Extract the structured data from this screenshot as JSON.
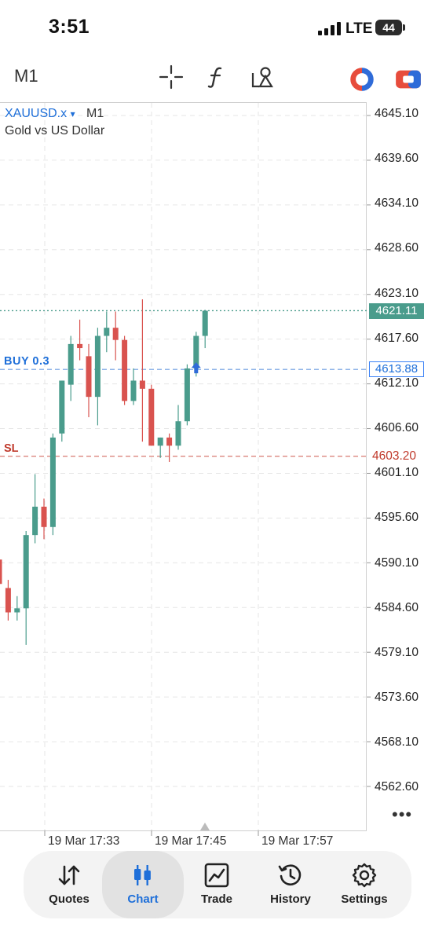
{
  "status": {
    "time": "3:51",
    "network": "LTE",
    "battery": "44"
  },
  "toolbar": {
    "timeframe": "M1",
    "icons": [
      "crosshair-icon",
      "indicator-f-icon",
      "objects-icon",
      "one-click-trading-icon",
      "chart-mode-icon"
    ]
  },
  "chart": {
    "symbol": "XAUUSD.x",
    "symbol_arrow": "▾",
    "timeframe": "M1",
    "description": "Gold vs US Dollar",
    "buy_label": "BUY 0.3",
    "sl_label": "SL",
    "current_price": "4621.11",
    "buy_price": "4613.88",
    "sl_price": "4603.20",
    "more": "•••",
    "price_labels": [
      "4645.10",
      "4639.60",
      "4634.10",
      "4628.60",
      "4623.10",
      "4617.60",
      "4612.10",
      "4606.60",
      "4601.10",
      "4595.60",
      "4590.10",
      "4584.60",
      "4579.10",
      "4573.60",
      "4568.10",
      "4562.60"
    ],
    "time_labels": [
      "19 Mar 17:33",
      "19 Mar 17:45",
      "19 Mar 17:57"
    ]
  },
  "chart_data": {
    "type": "candlestick",
    "y_ticks": [
      4645.1,
      4639.6,
      4634.1,
      4628.6,
      4623.1,
      4617.6,
      4612.1,
      4606.6,
      4601.1,
      4595.6,
      4590.1,
      4584.6,
      4579.1,
      4573.6,
      4568.1,
      4562.6
    ],
    "x_labels": [
      "19 Mar 17:33",
      "19 Mar 17:45",
      "19 Mar 17:57"
    ],
    "candles": [
      {
        "o": 4590.5,
        "h": 4592.0,
        "l": 4587.0,
        "c": 4587.5
      },
      {
        "o": 4587.0,
        "h": 4588.0,
        "l": 4583.0,
        "c": 4584.0
      },
      {
        "o": 4584.0,
        "h": 4586.0,
        "l": 4583.0,
        "c": 4584.5
      },
      {
        "o": 4584.5,
        "h": 4594.0,
        "l": 4580.0,
        "c": 4593.5
      },
      {
        "o": 4593.5,
        "h": 4601.0,
        "l": 4592.5,
        "c": 4597.0
      },
      {
        "o": 4597.0,
        "h": 4598.0,
        "l": 4593.0,
        "c": 4594.5
      },
      {
        "o": 4594.5,
        "h": 4606.0,
        "l": 4593.5,
        "c": 4605.5
      },
      {
        "o": 4606.0,
        "h": 4612.5,
        "l": 4605.0,
        "c": 4612.5
      },
      {
        "o": 4612.0,
        "h": 4618.0,
        "l": 4610.0,
        "c": 4617.0
      },
      {
        "o": 4617.0,
        "h": 4620.0,
        "l": 4615.0,
        "c": 4616.5
      },
      {
        "o": 4615.5,
        "h": 4617.0,
        "l": 4608.0,
        "c": 4610.5
      },
      {
        "o": 4610.5,
        "h": 4619.0,
        "l": 4607.0,
        "c": 4618.0
      },
      {
        "o": 4618.0,
        "h": 4621.0,
        "l": 4616.0,
        "c": 4619.0
      },
      {
        "o": 4619.0,
        "h": 4621.0,
        "l": 4615.0,
        "c": 4617.5
      },
      {
        "o": 4617.5,
        "h": 4618.0,
        "l": 4609.5,
        "c": 4610.0
      },
      {
        "o": 4610.0,
        "h": 4614.0,
        "l": 4609.5,
        "c": 4612.5
      },
      {
        "o": 4612.5,
        "h": 4622.5,
        "l": 4605.0,
        "c": 4611.5
      },
      {
        "o": 4611.5,
        "h": 4612.0,
        "l": 4604.5,
        "c": 4604.5
      },
      {
        "o": 4604.5,
        "h": 4605.5,
        "l": 4603.0,
        "c": 4605.5
      },
      {
        "o": 4605.5,
        "h": 4606.0,
        "l": 4602.5,
        "c": 4604.5
      },
      {
        "o": 4604.5,
        "h": 4609.5,
        "l": 4604.0,
        "c": 4607.5
      },
      {
        "o": 4607.5,
        "h": 4614.5,
        "l": 4607.0,
        "c": 4614.0
      },
      {
        "o": 4614.0,
        "h": 4618.5,
        "l": 4613.0,
        "c": 4618.0
      },
      {
        "o": 4618.0,
        "h": 4621.2,
        "l": 4616.5,
        "c": 4621.1
      }
    ]
  },
  "colors": {
    "bull": "#4a9c8c",
    "bear": "#d9534f",
    "accent": "#1e6fd9",
    "sl": "#c0392b",
    "grid": "#e6e6e6"
  },
  "nav": {
    "items": [
      {
        "label": "Quotes",
        "icon": "quotes-icon"
      },
      {
        "label": "Chart",
        "icon": "chart-icon",
        "active": true
      },
      {
        "label": "Trade",
        "icon": "trade-icon"
      },
      {
        "label": "History",
        "icon": "history-icon"
      },
      {
        "label": "Settings",
        "icon": "settings-icon"
      }
    ]
  }
}
